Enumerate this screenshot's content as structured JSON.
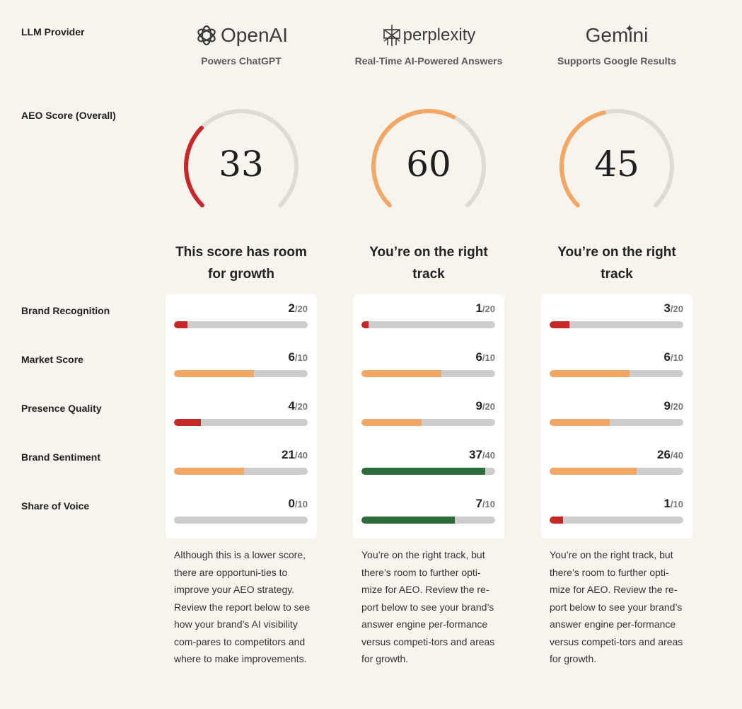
{
  "labels": {
    "llm_provider": "LLM Provider",
    "aeo_score": "AEO Score (Overall)",
    "brand_recognition": "Brand Recognition",
    "market_score": "Market Score",
    "presence_quality": "Presence Quality",
    "brand_sentiment": "Brand Sentiment",
    "share_of_voice": "Share of Voice"
  },
  "colors": {
    "red": "#c62828",
    "orange": "#f2a764",
    "green": "#2e6b3a",
    "track": "#cdcdcd",
    "gauge_track": "#dedad4"
  },
  "providers": [
    {
      "name": "OpenAI",
      "logo_icon": "openai-knot-icon",
      "subtitle": "Powers ChatGPT",
      "score": "33",
      "score_fraction": 0.33,
      "gauge_color": "red",
      "status": "This score has room for growth",
      "metrics": [
        {
          "value": "2",
          "max": "/20",
          "fraction": 0.1,
          "color": "red"
        },
        {
          "value": "6",
          "max": "/10",
          "fraction": 0.6,
          "color": "orange"
        },
        {
          "value": "4",
          "max": "/20",
          "fraction": 0.2,
          "color": "red"
        },
        {
          "value": "21",
          "max": "/40",
          "fraction": 0.525,
          "color": "orange"
        },
        {
          "value": "0",
          "max": "/10",
          "fraction": 0.0,
          "color": "red"
        }
      ],
      "description": "Although this is a lower score, there are opportuni-ties to improve your AEO strategy. Review the report below to see how your brand’s AI visibility com-pares to competitors and where to make improvements."
    },
    {
      "name": "perplexity",
      "logo_icon": "perplexity-asterisk-icon",
      "subtitle": "Real-Time AI-Powered Answers",
      "score": "60",
      "score_fraction": 0.6,
      "gauge_color": "orange",
      "status": "You’re on the right track",
      "metrics": [
        {
          "value": "1",
          "max": "/20",
          "fraction": 0.05,
          "color": "red"
        },
        {
          "value": "6",
          "max": "/10",
          "fraction": 0.6,
          "color": "orange"
        },
        {
          "value": "9",
          "max": "/20",
          "fraction": 0.45,
          "color": "orange"
        },
        {
          "value": "37",
          "max": "/40",
          "fraction": 0.925,
          "color": "green"
        },
        {
          "value": "7",
          "max": "/10",
          "fraction": 0.7,
          "color": "green"
        }
      ],
      "description": "You’re on the right track, but there’s room to further opti-mize for AEO. Review the re-port below to see your brand’s answer engine per-formance versus competi-tors and areas for growth."
    },
    {
      "name": "Gemini",
      "logo_icon": "gemini-sparkle-icon",
      "subtitle": "Supports Google Results",
      "score": "45",
      "score_fraction": 0.45,
      "gauge_color": "orange",
      "status": "You’re on the right track",
      "metrics": [
        {
          "value": "3",
          "max": "/20",
          "fraction": 0.15,
          "color": "red"
        },
        {
          "value": "6",
          "max": "/10",
          "fraction": 0.6,
          "color": "orange"
        },
        {
          "value": "9",
          "max": "/20",
          "fraction": 0.45,
          "color": "orange"
        },
        {
          "value": "26",
          "max": "/40",
          "fraction": 0.65,
          "color": "orange"
        },
        {
          "value": "1",
          "max": "/10",
          "fraction": 0.1,
          "color": "red"
        }
      ],
      "description": "You’re on the right track, but there’s room to further opti-mize for AEO. Review the re-port below to see your brand’s answer engine per-formance versus competi-tors and areas for growth."
    }
  ]
}
